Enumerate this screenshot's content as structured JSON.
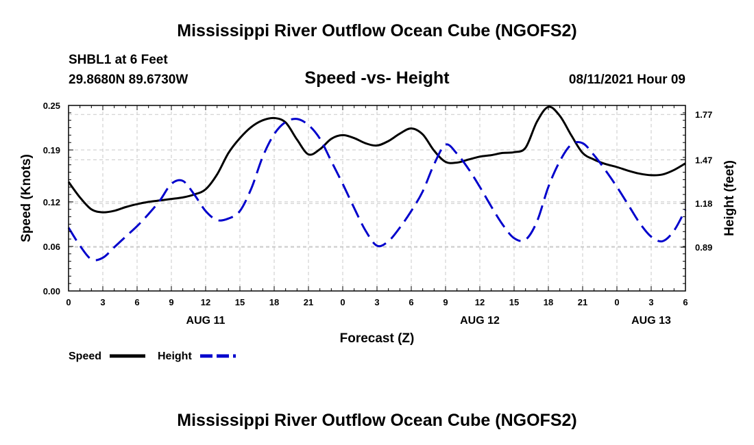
{
  "page": {
    "title_top": "Mississippi River Outflow Ocean Cube (NGOFS2)",
    "title_bottom": "Mississippi River Outflow Ocean Cube (NGOFS2)",
    "station": "SHBL1 at 6 Feet",
    "coords": "29.8680N  89.6730W",
    "subtitle": "Speed -vs- Height",
    "datetime": "08/11/2021 Hour 09"
  },
  "chart_data": {
    "type": "line",
    "title": "Speed -vs- Height",
    "xlabel": "Forecast (Z)",
    "ylabel_left": "Speed (Knots)",
    "ylabel_right": "Height (feet)",
    "x_range_hours": [
      0,
      54
    ],
    "x_ticks": [
      {
        "h": 0,
        "label": "0"
      },
      {
        "h": 3,
        "label": "3"
      },
      {
        "h": 6,
        "label": "6"
      },
      {
        "h": 9,
        "label": "9"
      },
      {
        "h": 12,
        "label": "12"
      },
      {
        "h": 15,
        "label": "15"
      },
      {
        "h": 18,
        "label": "18"
      },
      {
        "h": 21,
        "label": "21"
      },
      {
        "h": 24,
        "label": "0"
      },
      {
        "h": 27,
        "label": "3"
      },
      {
        "h": 30,
        "label": "6"
      },
      {
        "h": 33,
        "label": "9"
      },
      {
        "h": 36,
        "label": "12"
      },
      {
        "h": 39,
        "label": "15"
      },
      {
        "h": 42,
        "label": "18"
      },
      {
        "h": 45,
        "label": "21"
      },
      {
        "h": 48,
        "label": "0"
      },
      {
        "h": 51,
        "label": "3"
      },
      {
        "h": 54,
        "label": "6"
      }
    ],
    "date_labels": [
      {
        "h": 12,
        "label": "AUG 11"
      },
      {
        "h": 36,
        "label": "AUG 12"
      },
      {
        "h": 51,
        "label": "AUG 13"
      }
    ],
    "y_left": {
      "min": 0,
      "max": 0.25,
      "ticks": [
        0.0,
        0.06,
        0.12,
        0.19,
        0.25
      ],
      "labels": [
        "0.00",
        "0.06",
        "0.12",
        "0.19",
        "0.25"
      ]
    },
    "y_right": {
      "min": 0.6,
      "max": 1.83,
      "ticks": [
        0.89,
        1.18,
        1.47,
        1.77
      ],
      "labels": [
        "0.89",
        "1.18",
        "1.47",
        "1.77"
      ]
    },
    "series": [
      {
        "name": "Speed",
        "axis": "left",
        "color": "#000000",
        "dash": false,
        "points": [
          [
            0,
            0.147
          ],
          [
            1,
            0.126
          ],
          [
            2,
            0.11
          ],
          [
            3,
            0.106
          ],
          [
            4,
            0.108
          ],
          [
            5,
            0.113
          ],
          [
            6,
            0.117
          ],
          [
            7,
            0.12
          ],
          [
            8,
            0.122
          ],
          [
            9,
            0.124
          ],
          [
            10,
            0.126
          ],
          [
            11,
            0.13
          ],
          [
            12,
            0.137
          ],
          [
            13,
            0.157
          ],
          [
            14,
            0.186
          ],
          [
            15,
            0.206
          ],
          [
            16,
            0.221
          ],
          [
            17,
            0.23
          ],
          [
            18,
            0.233
          ],
          [
            19,
            0.227
          ],
          [
            20,
            0.204
          ],
          [
            21,
            0.184
          ],
          [
            22,
            0.191
          ],
          [
            23,
            0.205
          ],
          [
            24,
            0.21
          ],
          [
            25,
            0.206
          ],
          [
            26,
            0.199
          ],
          [
            27,
            0.196
          ],
          [
            28,
            0.202
          ],
          [
            29,
            0.212
          ],
          [
            30,
            0.219
          ],
          [
            31,
            0.211
          ],
          [
            32,
            0.189
          ],
          [
            33,
            0.174
          ],
          [
            34,
            0.173
          ],
          [
            35,
            0.177
          ],
          [
            36,
            0.181
          ],
          [
            37,
            0.183
          ],
          [
            38,
            0.186
          ],
          [
            39,
            0.187
          ],
          [
            40,
            0.193
          ],
          [
            41,
            0.228
          ],
          [
            42,
            0.248
          ],
          [
            43,
            0.236
          ],
          [
            44,
            0.21
          ],
          [
            45,
            0.186
          ],
          [
            46,
            0.177
          ],
          [
            47,
            0.171
          ],
          [
            48,
            0.167
          ],
          [
            49,
            0.162
          ],
          [
            50,
            0.158
          ],
          [
            51,
            0.156
          ],
          [
            52,
            0.157
          ],
          [
            53,
            0.163
          ],
          [
            54,
            0.172
          ]
        ]
      },
      {
        "name": "Height",
        "axis": "right",
        "color": "#0000cc",
        "dash": true,
        "points": [
          [
            0,
            1.02
          ],
          [
            1,
            0.9
          ],
          [
            2,
            0.81
          ],
          [
            3,
            0.82
          ],
          [
            4,
            0.89
          ],
          [
            5,
            0.96
          ],
          [
            6,
            1.03
          ],
          [
            7,
            1.11
          ],
          [
            8,
            1.2
          ],
          [
            9,
            1.31
          ],
          [
            10,
            1.33
          ],
          [
            11,
            1.24
          ],
          [
            12,
            1.13
          ],
          [
            13,
            1.07
          ],
          [
            14,
            1.08
          ],
          [
            15,
            1.13
          ],
          [
            16,
            1.28
          ],
          [
            17,
            1.49
          ],
          [
            18,
            1.64
          ],
          [
            19,
            1.72
          ],
          [
            20,
            1.74
          ],
          [
            21,
            1.7
          ],
          [
            22,
            1.61
          ],
          [
            23,
            1.46
          ],
          [
            24,
            1.31
          ],
          [
            25,
            1.15
          ],
          [
            26,
            1.0
          ],
          [
            27,
            0.9
          ],
          [
            28,
            0.93
          ],
          [
            29,
            1.02
          ],
          [
            30,
            1.13
          ],
          [
            31,
            1.26
          ],
          [
            32,
            1.44
          ],
          [
            33,
            1.57
          ],
          [
            34,
            1.51
          ],
          [
            35,
            1.41
          ],
          [
            36,
            1.29
          ],
          [
            37,
            1.16
          ],
          [
            38,
            1.04
          ],
          [
            39,
            0.95
          ],
          [
            40,
            0.94
          ],
          [
            41,
            1.06
          ],
          [
            42,
            1.29
          ],
          [
            43,
            1.46
          ],
          [
            44,
            1.57
          ],
          [
            45,
            1.58
          ],
          [
            46,
            1.5
          ],
          [
            47,
            1.4
          ],
          [
            48,
            1.29
          ],
          [
            49,
            1.17
          ],
          [
            50,
            1.05
          ],
          [
            51,
            0.96
          ],
          [
            52,
            0.93
          ],
          [
            53,
            1.0
          ],
          [
            54,
            1.14
          ]
        ]
      }
    ],
    "legend": [
      {
        "label": "Speed",
        "color": "#000000",
        "dash": false
      },
      {
        "label": "Height",
        "color": "#0000cc",
        "dash": true
      }
    ],
    "legend_position": "bottom-left",
    "grid": true
  }
}
